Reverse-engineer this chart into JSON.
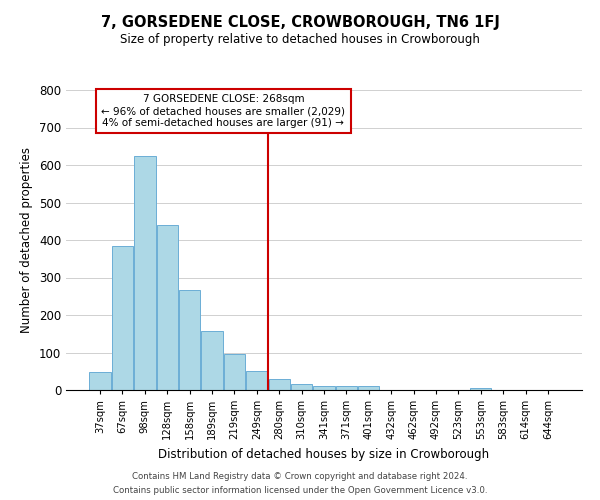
{
  "title": "7, GORSEDENE CLOSE, CROWBOROUGH, TN6 1FJ",
  "subtitle": "Size of property relative to detached houses in Crowborough",
  "xlabel": "Distribution of detached houses by size in Crowborough",
  "ylabel": "Number of detached properties",
  "bar_labels": [
    "37sqm",
    "67sqm",
    "98sqm",
    "128sqm",
    "158sqm",
    "189sqm",
    "219sqm",
    "249sqm",
    "280sqm",
    "310sqm",
    "341sqm",
    "371sqm",
    "401sqm",
    "432sqm",
    "462sqm",
    "492sqm",
    "523sqm",
    "553sqm",
    "583sqm",
    "614sqm",
    "644sqm"
  ],
  "bar_heights": [
    48,
    385,
    623,
    440,
    268,
    157,
    95,
    50,
    30,
    16,
    10,
    10,
    10,
    0,
    0,
    0,
    0,
    5,
    0,
    0,
    0
  ],
  "bar_color": "#add8e6",
  "bar_edge_color": "#6baed6",
  "vline_x": 7.5,
  "vline_color": "#cc0000",
  "annotation_title": "7 GORSEDENE CLOSE: 268sqm",
  "annotation_line1": "← 96% of detached houses are smaller (2,029)",
  "annotation_line2": "4% of semi-detached houses are larger (91) →",
  "annotation_box_color": "#ffffff",
  "annotation_box_edge": "#cc0000",
  "ylim": [
    0,
    800
  ],
  "yticks": [
    0,
    100,
    200,
    300,
    400,
    500,
    600,
    700,
    800
  ],
  "footer1": "Contains HM Land Registry data © Crown copyright and database right 2024.",
  "footer2": "Contains public sector information licensed under the Open Government Licence v3.0.",
  "background_color": "#ffffff",
  "grid_color": "#d0d0d0"
}
